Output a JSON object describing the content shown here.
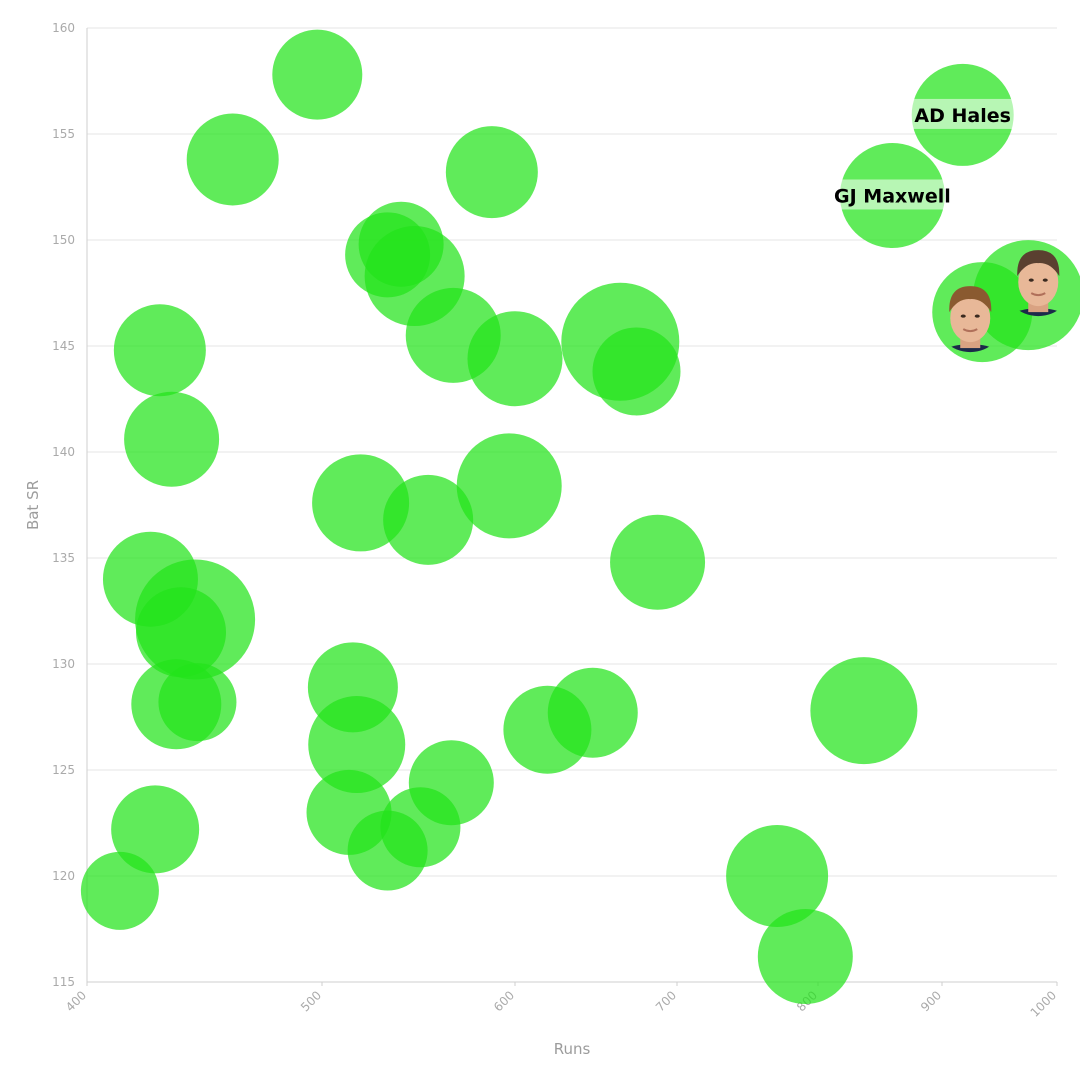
{
  "chart_data": {
    "type": "scatter",
    "xlabel": "Runs",
    "ylabel": "Bat SR",
    "xlim": [
      400,
      1000
    ],
    "ylim": [
      115,
      160
    ],
    "x_ticks": [
      400,
      500,
      600,
      700,
      800,
      900,
      1000
    ],
    "y_ticks": [
      115,
      120,
      125,
      130,
      135,
      140,
      145,
      150,
      155,
      160
    ],
    "grid": true,
    "bubble_color": "#22e31a",
    "points": [
      {
        "x": 414,
        "y": 119.3,
        "size": 0.78
      },
      {
        "x": 429,
        "y": 122.2,
        "size": 0.88
      },
      {
        "x": 427,
        "y": 134.0,
        "size": 0.95
      },
      {
        "x": 446,
        "y": 132.1,
        "size": 1.2
      },
      {
        "x": 440,
        "y": 131.5,
        "size": 0.9
      },
      {
        "x": 438,
        "y": 128.1,
        "size": 0.9
      },
      {
        "x": 447,
        "y": 128.2,
        "size": 0.78
      },
      {
        "x": 431,
        "y": 144.8,
        "size": 0.92
      },
      {
        "x": 436,
        "y": 140.6,
        "size": 0.95
      },
      {
        "x": 462,
        "y": 153.8,
        "size": 0.92
      },
      {
        "x": 498,
        "y": 157.8,
        "size": 0.9
      },
      {
        "x": 516,
        "y": 128.9,
        "size": 0.9
      },
      {
        "x": 518,
        "y": 126.2,
        "size": 0.97
      },
      {
        "x": 514,
        "y": 123.0,
        "size": 0.85
      },
      {
        "x": 534,
        "y": 121.2,
        "size": 0.8
      },
      {
        "x": 551,
        "y": 122.3,
        "size": 0.8
      },
      {
        "x": 567,
        "y": 124.4,
        "size": 0.85
      },
      {
        "x": 520,
        "y": 137.6,
        "size": 0.97
      },
      {
        "x": 555,
        "y": 136.8,
        "size": 0.9
      },
      {
        "x": 597,
        "y": 138.4,
        "size": 1.05
      },
      {
        "x": 534,
        "y": 149.3,
        "size": 0.85
      },
      {
        "x": 541,
        "y": 149.8,
        "size": 0.85
      },
      {
        "x": 548,
        "y": 148.3,
        "size": 1.0
      },
      {
        "x": 568,
        "y": 145.5,
        "size": 0.95
      },
      {
        "x": 588,
        "y": 153.2,
        "size": 0.92
      },
      {
        "x": 600,
        "y": 144.4,
        "size": 0.95
      },
      {
        "x": 665,
        "y": 145.2,
        "size": 1.18
      },
      {
        "x": 675,
        "y": 143.8,
        "size": 0.88
      },
      {
        "x": 688,
        "y": 134.8,
        "size": 0.95
      },
      {
        "x": 620,
        "y": 126.9,
        "size": 0.88
      },
      {
        "x": 648,
        "y": 127.7,
        "size": 0.9
      },
      {
        "x": 771,
        "y": 120.0,
        "size": 1.02
      },
      {
        "x": 791,
        "y": 116.2,
        "size": 0.95
      },
      {
        "x": 837,
        "y": 127.8,
        "size": 1.07
      },
      {
        "x": 860,
        "y": 152.1,
        "size": 1.05,
        "label": "GJ Maxwell"
      },
      {
        "x": 918,
        "y": 155.9,
        "size": 1.02,
        "label": "AD Hales"
      },
      {
        "x": 935,
        "y": 146.6,
        "size": 1.0,
        "avatar": "player-1-avatar"
      },
      {
        "x": 975,
        "y": 147.4,
        "size": 1.1,
        "avatar": "player-2-avatar"
      }
    ]
  }
}
